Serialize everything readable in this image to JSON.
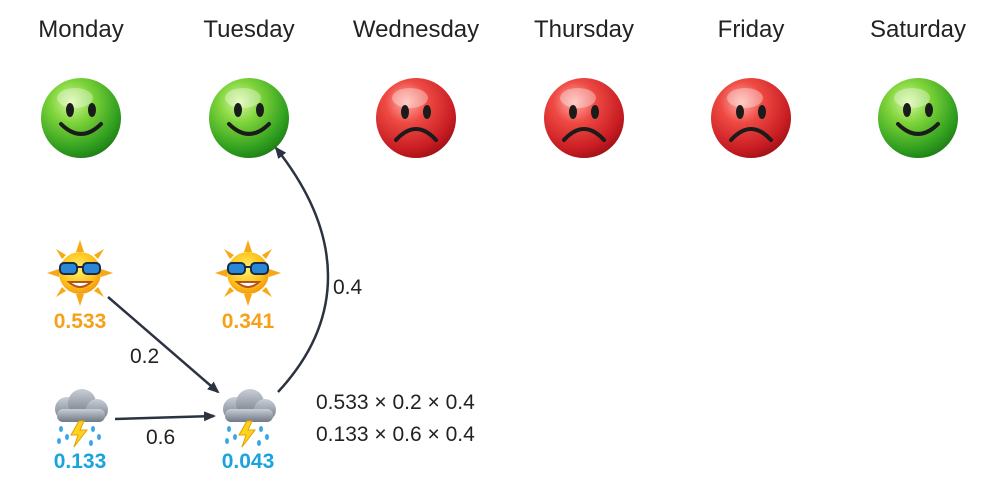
{
  "days": [
    {
      "label": "Monday",
      "mood": "happy"
    },
    {
      "label": "Tuesday",
      "mood": "happy"
    },
    {
      "label": "Wednesday",
      "mood": "sad"
    },
    {
      "label": "Thursday",
      "mood": "sad"
    },
    {
      "label": "Friday",
      "mood": "sad"
    },
    {
      "label": "Saturday",
      "mood": "happy"
    }
  ],
  "states": {
    "monday_sunny": {
      "value": "0.533",
      "icon": "sun-with-sunglasses-icon"
    },
    "monday_rainy": {
      "value": "0.133",
      "icon": "storm-cloud-icon"
    },
    "tuesday_sunny": {
      "value": "0.341",
      "icon": "sun-with-sunglasses-icon"
    },
    "tuesday_rainy": {
      "value": "0.043",
      "icon": "storm-cloud-icon"
    }
  },
  "edges": {
    "sunny_to_rainy": "0.2",
    "rainy_to_rainy": "0.6",
    "rainy_to_happy": "0.4"
  },
  "formula": {
    "line1": "0.533 × 0.2 × 0.4",
    "line2": "0.133 × 0.6 × 0.4"
  },
  "colors": {
    "sunny_text": "#f5a11a",
    "rainy_text": "#1aa3de",
    "happy_face": "#3fb52a",
    "sad_face": "#d9222a",
    "arrow": "#2b3240"
  }
}
